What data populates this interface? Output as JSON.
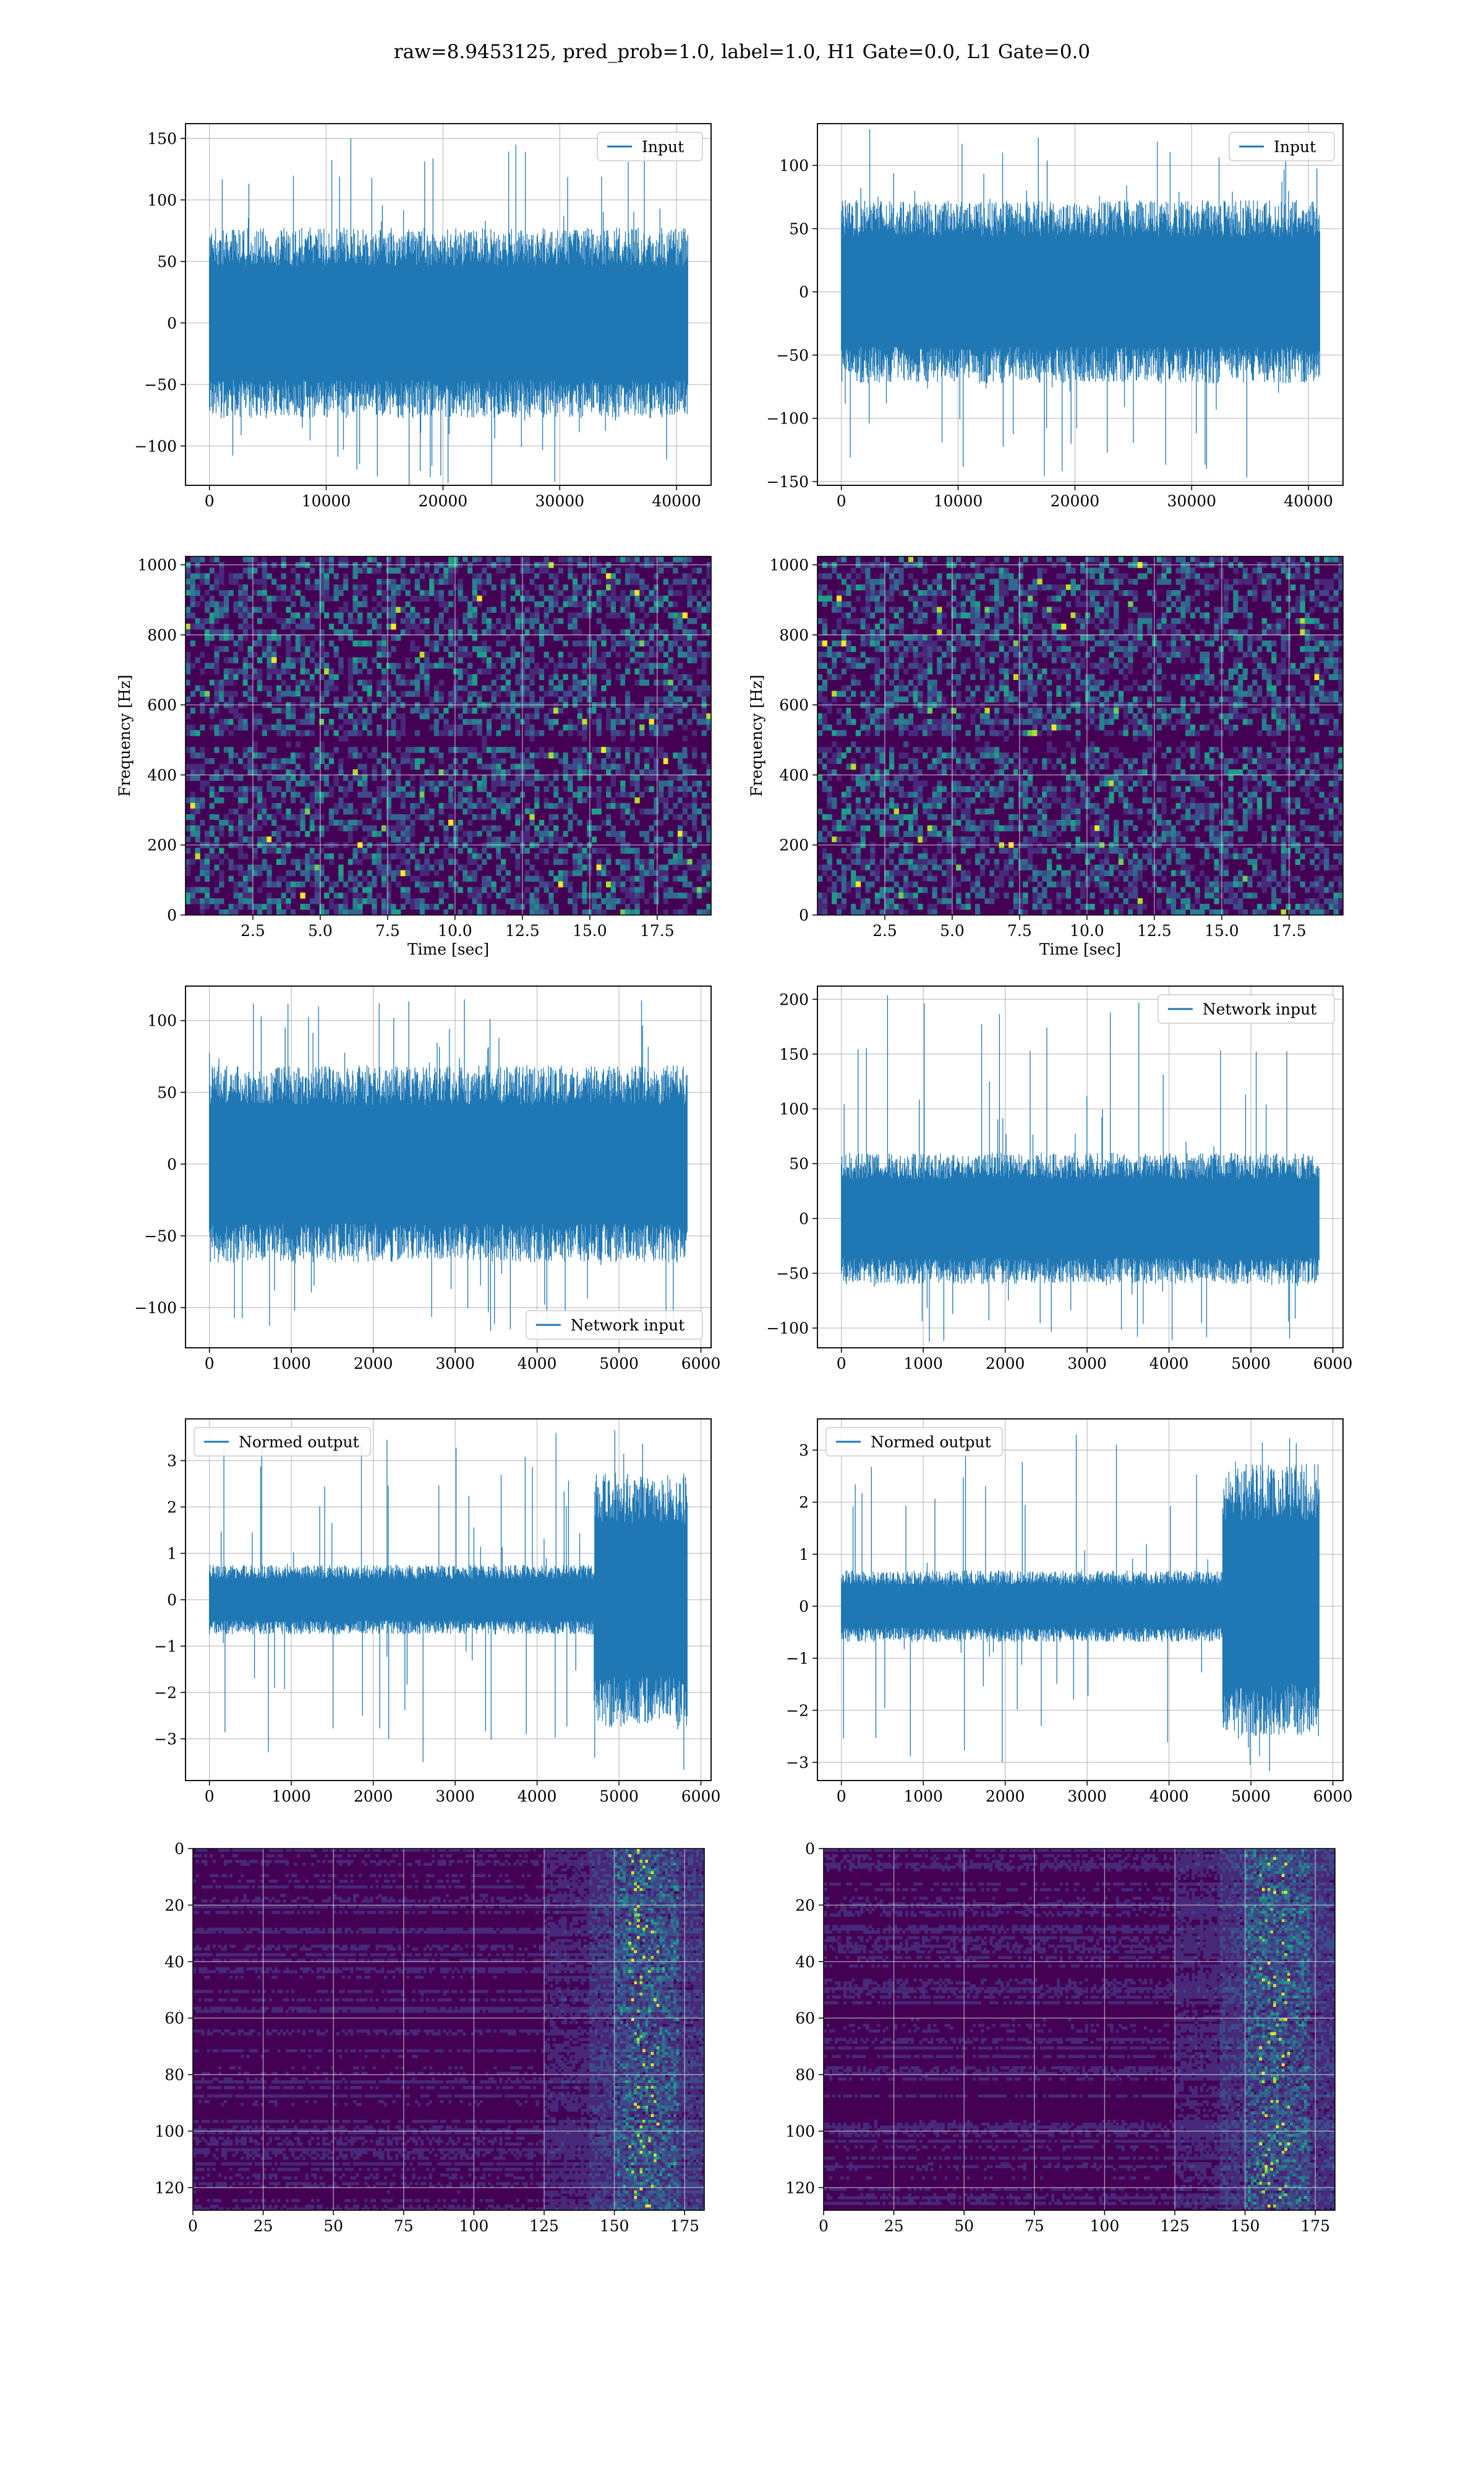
{
  "suptitle": "raw=8.9453125, pred_prob=1.0, label=1.0, H1 Gate=0.0, L1 Gate=0.0",
  "colors": {
    "line": "#1f77b4",
    "grid": "#b0b0b0",
    "viridis": [
      "#440154",
      "#482878",
      "#3e4989",
      "#31688e",
      "#26828e",
      "#1f9e89",
      "#35b779",
      "#6ece58",
      "#b5de2b",
      "#fde725"
    ]
  },
  "chart_data": [
    {
      "id": "input-h1",
      "type": "line",
      "legend": "Input",
      "legend_loc": "top-right",
      "xlim": [
        -2048,
        42957
      ],
      "ylim": [
        -132,
        162
      ],
      "xticks": [
        0,
        10000,
        20000,
        30000,
        40000
      ],
      "yticks": [
        -100,
        -50,
        0,
        50,
        100,
        150
      ],
      "n": 40960,
      "band": [
        -62,
        62
      ],
      "extremes": [
        -132,
        150
      ]
    },
    {
      "id": "input-l1",
      "type": "line",
      "legend": "Input",
      "legend_loc": "top-right",
      "xlim": [
        -2048,
        42957
      ],
      "ylim": [
        -153,
        133
      ],
      "xticks": [
        0,
        10000,
        20000,
        30000,
        40000
      ],
      "yticks": [
        -150,
        -100,
        -50,
        0,
        50,
        100
      ],
      "n": 40960,
      "band": [
        -58,
        58
      ],
      "extremes": [
        -140,
        122
      ]
    },
    {
      "id": "spec-h1",
      "type": "heatmap",
      "xlabel": "Time [sec]",
      "ylabel": "Frequency [Hz]",
      "xlim": [
        0.0,
        19.5
      ],
      "ylim": [
        0,
        1024
      ],
      "xticks": [
        2.5,
        5.0,
        7.5,
        10.0,
        12.5,
        15.0,
        17.5
      ],
      "yticks": [
        0,
        200,
        400,
        600,
        800,
        1000
      ]
    },
    {
      "id": "spec-l1",
      "type": "heatmap",
      "xlabel": "Time [sec]",
      "ylabel": "Frequency [Hz]",
      "xlim": [
        0.0,
        19.5
      ],
      "ylim": [
        0,
        1024
      ],
      "xticks": [
        2.5,
        5.0,
        7.5,
        10.0,
        12.5,
        15.0,
        17.5
      ],
      "yticks": [
        0,
        200,
        400,
        600,
        800,
        1000
      ]
    },
    {
      "id": "net-h1",
      "type": "line",
      "legend": "Network input",
      "legend_loc": "bottom-right",
      "xlim": [
        -292,
        6124
      ],
      "ylim": [
        -128,
        124
      ],
      "xticks": [
        0,
        1000,
        2000,
        3000,
        4000,
        5000,
        6000
      ],
      "yticks": [
        -100,
        -50,
        0,
        50,
        100
      ],
      "n": 5832,
      "band": [
        -55,
        55
      ],
      "extremes": [
        -115,
        112
      ]
    },
    {
      "id": "net-l1",
      "type": "line",
      "legend": "Network input",
      "legend_loc": "top-right",
      "xlim": [
        -292,
        6124
      ],
      "ylim": [
        -118,
        212
      ],
      "xticks": [
        0,
        1000,
        2000,
        3000,
        4000,
        5000,
        6000
      ],
      "yticks": [
        -100,
        -50,
        0,
        50,
        100,
        150,
        200
      ],
      "n": 5832,
      "band": [
        -48,
        48
      ],
      "extremes": [
        -108,
        197
      ]
    },
    {
      "id": "norm-h1",
      "type": "line",
      "legend": "Normed output",
      "legend_loc": "top-left",
      "xlim": [
        -292,
        6124
      ],
      "ylim": [
        -3.9,
        3.9
      ],
      "xticks": [
        0,
        1000,
        2000,
        3000,
        4000,
        5000,
        6000
      ],
      "yticks": [
        -3,
        -2,
        -1,
        0,
        1,
        2,
        3
      ],
      "n": 5832,
      "band": [
        -0.6,
        0.6
      ],
      "burst_start": 4700,
      "burst_band": [
        -2.2,
        2.2
      ],
      "extremes": [
        -3.5,
        3.6
      ]
    },
    {
      "id": "norm-l1",
      "type": "line",
      "legend": "Normed output",
      "legend_loc": "top-left",
      "xlim": [
        -292,
        6124
      ],
      "ylim": [
        -3.35,
        3.6
      ],
      "xticks": [
        0,
        1000,
        2000,
        3000,
        4000,
        5000,
        6000
      ],
      "yticks": [
        -3,
        -2,
        -1,
        0,
        1,
        2,
        3
      ],
      "n": 5832,
      "band": [
        -0.55,
        0.55
      ],
      "burst_start": 4650,
      "burst_band": [
        -2.0,
        2.2
      ],
      "extremes": [
        -3.0,
        3.3
      ]
    },
    {
      "id": "feat-h1",
      "type": "heatmap",
      "xlim": [
        0,
        182
      ],
      "ylim": [
        128,
        0
      ],
      "xticks": [
        0,
        25,
        50,
        75,
        100,
        125,
        150,
        175
      ],
      "yticks": [
        0,
        20,
        40,
        60,
        80,
        100,
        120
      ]
    },
    {
      "id": "feat-l1",
      "type": "heatmap",
      "xlim": [
        0,
        182
      ],
      "ylim": [
        128,
        0
      ],
      "xticks": [
        0,
        25,
        50,
        75,
        100,
        125,
        150,
        175
      ],
      "yticks": [
        0,
        20,
        40,
        60,
        80,
        100,
        120
      ]
    }
  ]
}
